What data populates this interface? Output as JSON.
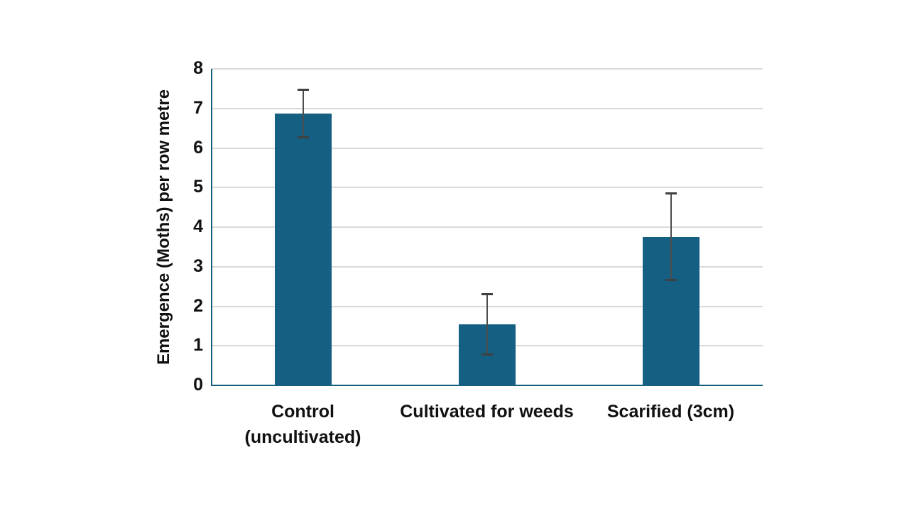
{
  "chart_data": {
    "type": "bar",
    "title": "",
    "xlabel": "",
    "ylabel": "Emergence (Moths) per row metre",
    "categories": [
      "Control (uncultivated)",
      "Cultivated for weeds",
      "Scarified (3cm)"
    ],
    "values": [
      6.87,
      1.55,
      3.75
    ],
    "error_bars": [
      0.62,
      0.79,
      1.12
    ],
    "ylim": [
      0,
      8
    ],
    "yticks": [
      0,
      1,
      2,
      3,
      4,
      5,
      6,
      7,
      8
    ],
    "grid": true,
    "legend": "none",
    "bar_color": "#156082",
    "axis_color": "#156082",
    "gridline_color": "#d9d9d9",
    "error_bar_color": "#404040",
    "label_color": "#111111"
  }
}
